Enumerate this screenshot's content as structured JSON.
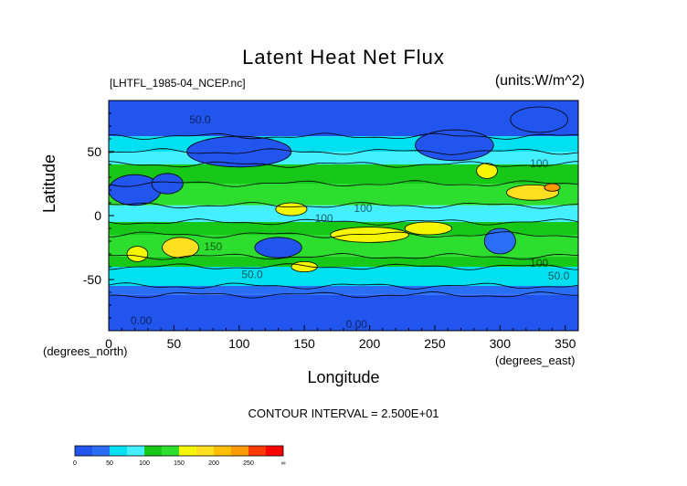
{
  "chart_data": {
    "type": "heatmap",
    "title": "Latent Heat Net Flux",
    "file_label": "[LHTFL_1985-04_NCEP.nc]",
    "units_label": "(units:W/m^2)",
    "xlabel": "Longitude",
    "ylabel": "Latitude",
    "x_units": "(degrees_east)",
    "y_units": "(degrees_north)",
    "xlim": [
      0,
      360
    ],
    "ylim": [
      -90,
      90
    ],
    "x_ticks": [
      0,
      50,
      100,
      150,
      200,
      250,
      300,
      350
    ],
    "y_ticks": [
      -50,
      0,
      50
    ],
    "contour_interval": "CONTOUR INTERVAL = 2.500E+01",
    "contour_labels": [
      {
        "text": "50.0",
        "lon": 70,
        "lat": 72
      },
      {
        "text": "100",
        "lon": 165,
        "lat": -5
      },
      {
        "text": "100",
        "lon": 195,
        "lat": 3
      },
      {
        "text": "150",
        "lon": 80,
        "lat": -27
      },
      {
        "text": "50.0",
        "lon": 110,
        "lat": -49
      },
      {
        "text": "100",
        "lon": 330,
        "lat": -40
      },
      {
        "text": "50.0",
        "lon": 345,
        "lat": -50
      },
      {
        "text": "100",
        "lon": 330,
        "lat": 38
      },
      {
        "text": "0.00",
        "lon": 25,
        "lat": -85
      },
      {
        "text": "0.00",
        "lon": 190,
        "lat": -88
      }
    ],
    "colorbar": {
      "bins": [
        {
          "from": 0,
          "to": 25,
          "color": "#2155ee"
        },
        {
          "from": 25,
          "to": 50,
          "color": "#2a6ef6"
        },
        {
          "from": 50,
          "to": 75,
          "color": "#00e0f0"
        },
        {
          "from": 75,
          "to": 100,
          "color": "#44f0ff"
        },
        {
          "from": 100,
          "to": 125,
          "color": "#18c818"
        },
        {
          "from": 125,
          "to": 150,
          "color": "#2ede2e"
        },
        {
          "from": 150,
          "to": 175,
          "color": "#f6f600"
        },
        {
          "from": 175,
          "to": 200,
          "color": "#ffe020"
        },
        {
          "from": 200,
          "to": 225,
          "color": "#ffbe00"
        },
        {
          "from": 225,
          "to": 250,
          "color": "#ff9a00"
        },
        {
          "from": 250,
          "to": 275,
          "color": "#ff3a00"
        },
        {
          "from": 275,
          "to": 300,
          "color": "#ff0000"
        }
      ],
      "tick_labels": [
        "0",
        "50",
        "100",
        "150",
        "200",
        "250",
        "∞"
      ]
    },
    "field_bands": [
      {
        "lat_from": 90,
        "lat_to": 62,
        "value": 20
      },
      {
        "lat_from": 62,
        "lat_to": 50,
        "value": 60
      },
      {
        "lat_from": 50,
        "lat_to": 40,
        "value": 85
      },
      {
        "lat_from": 40,
        "lat_to": 25,
        "value": 110
      },
      {
        "lat_from": 25,
        "lat_to": 8,
        "value": 135
      },
      {
        "lat_from": 8,
        "lat_to": -5,
        "value": 90
      },
      {
        "lat_from": -5,
        "lat_to": -15,
        "value": 115
      },
      {
        "lat_from": -15,
        "lat_to": -32,
        "value": 140
      },
      {
        "lat_from": -32,
        "lat_to": -40,
        "value": 110
      },
      {
        "lat_from": -40,
        "lat_to": -55,
        "value": 60
      },
      {
        "lat_from": -55,
        "lat_to": -62,
        "value": 35
      },
      {
        "lat_from": -62,
        "lat_to": -90,
        "value": 10
      }
    ],
    "hotspots": [
      {
        "lon": 55,
        "lat": -25,
        "rlon": 14,
        "rlat": 8,
        "value": 190
      },
      {
        "lon": 140,
        "lat": 5,
        "rlon": 12,
        "rlat": 5,
        "value": 165
      },
      {
        "lon": 200,
        "lat": -15,
        "rlon": 30,
        "rlat": 6,
        "value": 165
      },
      {
        "lon": 245,
        "lat": -10,
        "rlon": 18,
        "rlat": 5,
        "value": 165
      },
      {
        "lon": 325,
        "lat": 18,
        "rlon": 20,
        "rlat": 6,
        "value": 190
      },
      {
        "lon": 340,
        "lat": 22,
        "rlon": 6,
        "rlat": 3,
        "value": 240
      },
      {
        "lon": 290,
        "lat": 35,
        "rlon": 8,
        "rlat": 6,
        "value": 170
      },
      {
        "lon": 150,
        "lat": -40,
        "rlon": 10,
        "rlat": 4,
        "value": 165
      },
      {
        "lon": 22,
        "lat": -30,
        "rlon": 8,
        "rlat": 6,
        "value": 150
      },
      {
        "lon": 300,
        "lat": -20,
        "rlon": 12,
        "rlat": 10,
        "value": 40
      },
      {
        "lon": 20,
        "lat": 20,
        "rlon": 20,
        "rlat": 12,
        "value": 10
      },
      {
        "lon": 45,
        "lat": 25,
        "rlon": 12,
        "rlat": 8,
        "value": 20
      },
      {
        "lon": 130,
        "lat": -25,
        "rlon": 18,
        "rlat": 8,
        "value": 20
      },
      {
        "lon": 100,
        "lat": 50,
        "rlon": 40,
        "rlat": 12,
        "value": 20
      },
      {
        "lon": 265,
        "lat": 55,
        "rlon": 30,
        "rlat": 12,
        "value": 20
      },
      {
        "lon": 330,
        "lat": 75,
        "rlon": 22,
        "rlat": 10,
        "value": 15
      }
    ]
  }
}
